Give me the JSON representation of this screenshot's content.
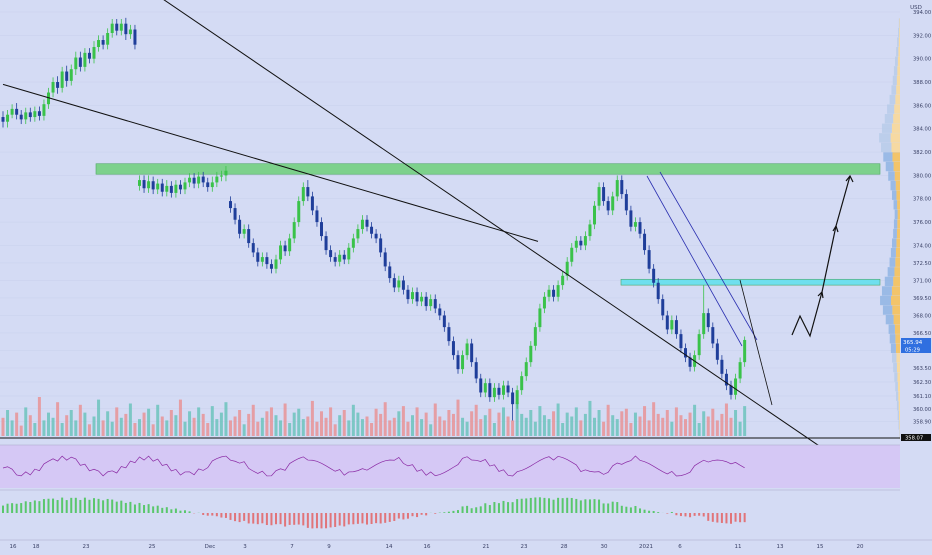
{
  "chart_data": {
    "type": "candlestick",
    "symbol_unit": "USD",
    "price_axis_labels": [
      "394.00",
      "392.00",
      "390.00",
      "388.00",
      "386.00",
      "384.00",
      "382.00",
      "380.00",
      "378.00",
      "376.00",
      "374.00",
      "372.50",
      "371.00",
      "369.50",
      "368.00",
      "366.50",
      "365.00",
      "363.50",
      "362.30",
      "361.10",
      "360.00",
      "358.90"
    ],
    "price_range": [
      357.5,
      394.6
    ],
    "last_price": "365.94",
    "countdown": "05:29",
    "low_marker": "358.07",
    "x_axis_labels": [
      "16",
      "18",
      "23",
      "25",
      "Dec",
      "3",
      "7",
      "9",
      "14",
      "16",
      "21",
      "23",
      "28",
      "30",
      "2021",
      "6",
      "11",
      "13",
      "15",
      "20"
    ],
    "horizontal_zones": [
      {
        "low": 380.1,
        "high": 381.0,
        "color": "#6fd07a"
      },
      {
        "low": 370.6,
        "high": 371.1,
        "color": "#5ee0ee"
      }
    ],
    "candles": [
      [
        385.0,
        384.6,
        385.5,
        384.1
      ],
      [
        384.6,
        385.2,
        385.6,
        384.1
      ],
      [
        385.2,
        385.7,
        386.1,
        384.9
      ],
      [
        385.7,
        385.2,
        386.2,
        384.8
      ],
      [
        385.2,
        384.8,
        385.6,
        384.4
      ],
      [
        384.8,
        385.4,
        385.8,
        384.4
      ],
      [
        385.4,
        385.0,
        385.8,
        384.6
      ],
      [
        385.0,
        385.5,
        385.9,
        384.6
      ],
      [
        385.5,
        385.1,
        385.9,
        384.7
      ],
      [
        385.1,
        386.1,
        386.5,
        384.7
      ],
      [
        386.1,
        387.1,
        387.5,
        385.7
      ],
      [
        387.1,
        388.0,
        388.4,
        386.7
      ],
      [
        388.0,
        387.5,
        388.5,
        387.0
      ],
      [
        387.5,
        388.9,
        389.3,
        387.1
      ],
      [
        388.9,
        388.1,
        389.4,
        387.6
      ],
      [
        388.1,
        389.1,
        389.5,
        387.7
      ],
      [
        389.1,
        390.1,
        390.6,
        388.6
      ],
      [
        390.1,
        389.3,
        390.6,
        388.9
      ],
      [
        389.3,
        390.5,
        390.9,
        388.9
      ],
      [
        390.5,
        390.0,
        390.9,
        389.6
      ],
      [
        390.0,
        391.0,
        391.5,
        389.6
      ],
      [
        391.0,
        391.6,
        392.0,
        390.6
      ],
      [
        391.6,
        391.2,
        392.0,
        390.8
      ],
      [
        391.2,
        392.2,
        392.6,
        390.8
      ],
      [
        392.2,
        393.0,
        393.4,
        391.8
      ],
      [
        393.0,
        392.4,
        393.4,
        392.0
      ],
      [
        392.4,
        393.0,
        393.4,
        392.0
      ],
      [
        393.0,
        392.1,
        393.5,
        391.6
      ],
      [
        392.1,
        392.5,
        392.9,
        391.7
      ],
      [
        392.5,
        391.2,
        392.9,
        390.8
      ],
      [
        379.1,
        379.6,
        380.0,
        378.7
      ],
      [
        379.6,
        378.9,
        380.0,
        378.5
      ],
      [
        378.9,
        379.5,
        380.0,
        378.5
      ],
      [
        379.5,
        378.8,
        379.9,
        378.4
      ],
      [
        378.8,
        379.3,
        379.7,
        378.4
      ],
      [
        379.3,
        378.6,
        379.7,
        378.2
      ],
      [
        378.6,
        379.1,
        379.6,
        378.2
      ],
      [
        379.1,
        378.5,
        379.5,
        378.1
      ],
      [
        378.5,
        379.2,
        379.6,
        378.1
      ],
      [
        379.2,
        378.8,
        379.6,
        378.4
      ],
      [
        378.8,
        379.4,
        379.8,
        378.4
      ],
      [
        379.4,
        379.8,
        380.2,
        379.0
      ],
      [
        379.8,
        379.3,
        380.2,
        378.9
      ],
      [
        379.3,
        379.9,
        380.3,
        378.9
      ],
      [
        379.9,
        379.4,
        380.3,
        379.0
      ],
      [
        379.4,
        379.0,
        379.8,
        378.6
      ],
      [
        379.0,
        379.4,
        379.9,
        378.6
      ],
      [
        379.4,
        379.9,
        380.3,
        379.0
      ],
      [
        379.9,
        380.0,
        380.4,
        379.5
      ],
      [
        380.0,
        380.4,
        380.8,
        379.5
      ],
      [
        377.8,
        377.2,
        378.2,
        376.8
      ],
      [
        377.2,
        376.2,
        377.6,
        375.8
      ],
      [
        376.2,
        375.0,
        376.6,
        374.6
      ],
      [
        375.0,
        375.4,
        375.8,
        374.6
      ],
      [
        375.4,
        374.2,
        375.8,
        373.8
      ],
      [
        374.2,
        373.4,
        374.6,
        373.0
      ],
      [
        373.4,
        372.6,
        373.8,
        372.2
      ],
      [
        372.6,
        373.0,
        373.4,
        372.2
      ],
      [
        373.0,
        372.4,
        373.4,
        372.0
      ],
      [
        372.4,
        372.0,
        372.8,
        371.6
      ],
      [
        372.0,
        372.8,
        373.2,
        371.6
      ],
      [
        372.8,
        374.0,
        374.4,
        372.4
      ],
      [
        374.0,
        373.5,
        374.4,
        373.1
      ],
      [
        373.5,
        374.6,
        375.0,
        373.1
      ],
      [
        374.6,
        376.0,
        376.4,
        374.2
      ],
      [
        376.0,
        377.8,
        378.2,
        375.6
      ],
      [
        377.8,
        379.0,
        379.4,
        377.4
      ],
      [
        379.0,
        378.2,
        379.6,
        377.8
      ],
      [
        378.2,
        377.0,
        378.6,
        376.6
      ],
      [
        377.0,
        376.0,
        377.4,
        375.6
      ],
      [
        376.0,
        374.8,
        376.4,
        374.4
      ],
      [
        374.8,
        373.6,
        375.2,
        373.2
      ],
      [
        373.6,
        373.0,
        374.0,
        372.6
      ],
      [
        373.0,
        372.6,
        373.4,
        372.2
      ],
      [
        372.6,
        373.2,
        373.6,
        372.2
      ],
      [
        373.2,
        372.8,
        373.6,
        372.4
      ],
      [
        372.8,
        373.8,
        374.2,
        372.4
      ],
      [
        373.8,
        374.6,
        375.0,
        373.4
      ],
      [
        374.6,
        375.4,
        375.8,
        374.2
      ],
      [
        375.4,
        376.2,
        376.6,
        375.0
      ],
      [
        376.2,
        375.6,
        376.6,
        375.2
      ],
      [
        375.6,
        375.0,
        376.0,
        374.6
      ],
      [
        375.0,
        374.6,
        375.4,
        374.2
      ],
      [
        374.6,
        373.4,
        375.0,
        373.0
      ],
      [
        373.4,
        372.2,
        373.8,
        371.8
      ],
      [
        372.2,
        371.2,
        372.6,
        370.8
      ],
      [
        371.2,
        370.4,
        371.6,
        370.0
      ],
      [
        370.4,
        371.0,
        371.4,
        370.0
      ],
      [
        371.0,
        370.2,
        371.4,
        369.8
      ],
      [
        370.2,
        369.4,
        370.6,
        369.0
      ],
      [
        369.4,
        370.0,
        370.4,
        369.0
      ],
      [
        370.0,
        369.2,
        370.4,
        368.8
      ],
      [
        369.2,
        369.6,
        370.0,
        368.8
      ],
      [
        369.6,
        368.8,
        370.0,
        368.4
      ],
      [
        368.8,
        369.4,
        369.8,
        368.4
      ],
      [
        369.4,
        368.6,
        369.8,
        368.2
      ],
      [
        368.6,
        368.0,
        369.0,
        367.6
      ],
      [
        368.0,
        367.0,
        368.4,
        366.6
      ],
      [
        367.0,
        365.8,
        367.4,
        365.4
      ],
      [
        365.8,
        364.6,
        366.2,
        364.2
      ],
      [
        364.6,
        363.4,
        365.0,
        363.0
      ],
      [
        363.4,
        364.6,
        365.0,
        363.0
      ],
      [
        364.6,
        365.6,
        366.0,
        364.2
      ],
      [
        365.6,
        364.0,
        366.0,
        363.6
      ],
      [
        364.0,
        362.6,
        364.4,
        362.2
      ],
      [
        362.6,
        361.4,
        363.0,
        361.0
      ],
      [
        361.4,
        362.2,
        362.6,
        361.0
      ],
      [
        362.2,
        361.0,
        362.6,
        360.6
      ],
      [
        361.0,
        361.8,
        362.2,
        360.6
      ],
      [
        361.8,
        361.2,
        362.2,
        360.8
      ],
      [
        361.2,
        362.0,
        362.4,
        360.8
      ],
      [
        362.0,
        361.4,
        362.4,
        361.0
      ],
      [
        361.4,
        360.4,
        361.8,
        359.0
      ],
      [
        360.4,
        361.6,
        362.0,
        360.0
      ],
      [
        361.6,
        362.8,
        363.2,
        361.2
      ],
      [
        362.8,
        364.0,
        364.4,
        362.4
      ],
      [
        364.0,
        365.4,
        365.8,
        363.6
      ],
      [
        365.4,
        367.0,
        367.4,
        365.0
      ],
      [
        367.0,
        368.6,
        369.0,
        366.6
      ],
      [
        368.6,
        369.6,
        370.0,
        368.2
      ],
      [
        369.6,
        370.2,
        370.6,
        369.2
      ],
      [
        370.2,
        369.6,
        370.6,
        369.2
      ],
      [
        369.6,
        370.6,
        371.0,
        369.2
      ],
      [
        370.6,
        371.4,
        371.8,
        370.2
      ],
      [
        371.4,
        372.6,
        373.0,
        371.0
      ],
      [
        372.6,
        373.8,
        374.2,
        372.2
      ],
      [
        373.8,
        374.4,
        374.8,
        373.4
      ],
      [
        374.4,
        374.0,
        374.8,
        373.6
      ],
      [
        374.0,
        374.8,
        375.2,
        373.6
      ],
      [
        374.8,
        375.8,
        376.2,
        374.4
      ],
      [
        375.8,
        377.4,
        377.8,
        375.4
      ],
      [
        377.4,
        379.0,
        379.4,
        377.0
      ],
      [
        379.0,
        377.8,
        379.4,
        377.4
      ],
      [
        377.8,
        377.0,
        378.2,
        376.6
      ],
      [
        377.0,
        378.2,
        378.6,
        376.6
      ],
      [
        378.2,
        379.6,
        380.0,
        377.8
      ],
      [
        379.6,
        378.4,
        380.0,
        378.0
      ],
      [
        378.4,
        377.0,
        378.8,
        376.6
      ],
      [
        377.0,
        375.6,
        377.4,
        375.2
      ],
      [
        375.6,
        376.0,
        376.4,
        375.2
      ],
      [
        376.0,
        375.0,
        376.4,
        374.6
      ],
      [
        375.0,
        373.6,
        375.4,
        373.2
      ],
      [
        373.6,
        372.0,
        374.0,
        371.6
      ],
      [
        372.0,
        370.8,
        372.4,
        370.4
      ],
      [
        370.8,
        369.4,
        371.2,
        369.0
      ],
      [
        369.4,
        368.0,
        369.8,
        367.6
      ],
      [
        368.0,
        366.8,
        368.4,
        366.4
      ],
      [
        366.8,
        367.6,
        368.0,
        366.4
      ],
      [
        367.6,
        366.4,
        368.0,
        366.0
      ],
      [
        366.4,
        365.2,
        366.8,
        364.8
      ],
      [
        365.2,
        364.4,
        365.6,
        364.0
      ],
      [
        364.4,
        363.6,
        364.8,
        363.2
      ],
      [
        363.6,
        364.6,
        365.0,
        363.2
      ],
      [
        364.6,
        366.4,
        366.8,
        364.2
      ],
      [
        366.4,
        368.2,
        370.6,
        366.0
      ],
      [
        368.2,
        367.0,
        368.6,
        366.6
      ],
      [
        367.0,
        365.6,
        367.4,
        365.2
      ],
      [
        365.6,
        364.2,
        366.0,
        363.8
      ],
      [
        364.2,
        363.0,
        364.6,
        362.6
      ],
      [
        363.0,
        362.0,
        363.4,
        361.6
      ],
      [
        362.0,
        361.2,
        362.4,
        360.8
      ],
      [
        361.2,
        362.6,
        363.0,
        360.8
      ],
      [
        362.6,
        364.0,
        364.4,
        362.2
      ],
      [
        364.0,
        365.9,
        366.2,
        363.6
      ]
    ],
    "drawn_lines": [
      {
        "from": [
          0,
          387.8
        ],
        "to": [
          100,
          377.6
        ]
      },
      {
        "from": [
          25,
          397.8
        ],
        "to": [
          170,
          357.9
        ]
      }
    ],
    "projected_path": [
      [
        168,
        366.6
      ],
      [
        170,
        368.0
      ],
      [
        173,
        366.5
      ],
      [
        176,
        369.6
      ],
      [
        180,
        373.4
      ],
      [
        184,
        379.8
      ]
    ]
  }
}
